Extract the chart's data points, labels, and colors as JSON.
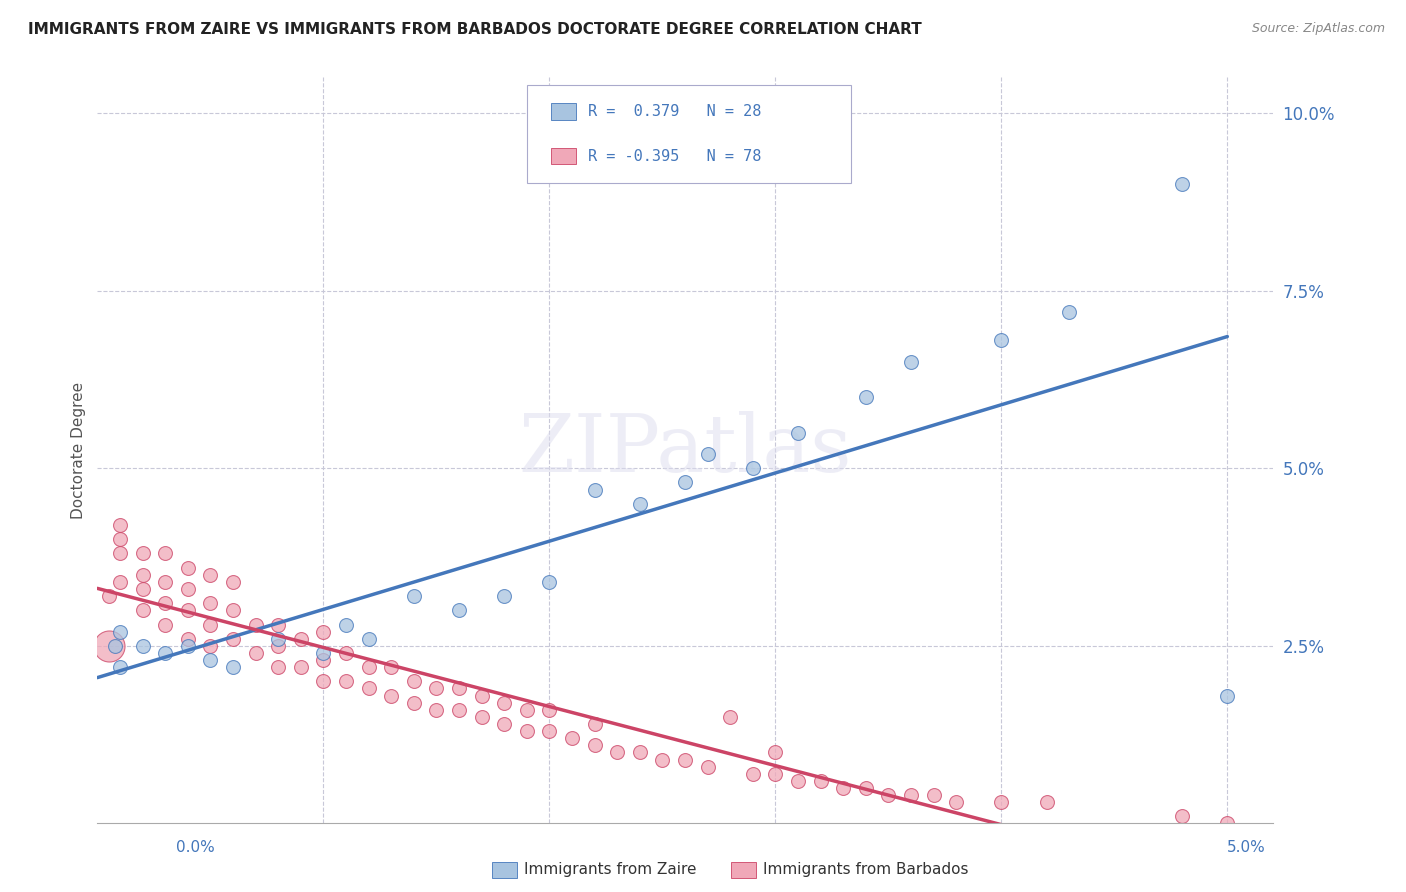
{
  "title": "IMMIGRANTS FROM ZAIRE VS IMMIGRANTS FROM BARBADOS DOCTORATE DEGREE CORRELATION CHART",
  "source": "Source: ZipAtlas.com",
  "ylabel": "Doctorate Degree",
  "ylim": [
    0.0,
    0.105
  ],
  "xlim": [
    0.0,
    0.052
  ],
  "yticks": [
    0.0,
    0.025,
    0.05,
    0.075,
    0.1
  ],
  "ytick_labels": [
    "",
    "2.5%",
    "5.0%",
    "7.5%",
    "10.0%"
  ],
  "background_color": "#ffffff",
  "grid_color": "#c8c8d8",
  "zaire_color": "#a8c4e0",
  "barbados_color": "#f0a8b8",
  "zaire_line_color": "#4477bb",
  "barbados_line_color": "#cc4466",
  "legend_text_color": "#4477bb",
  "legend_R_zaire": "R =  0.379",
  "legend_N_zaire": "N = 28",
  "legend_R_barbados": "R = -0.395",
  "legend_N_barbados": "N = 78",
  "legend_label_zaire": "Immigrants from Zaire",
  "legend_label_barbados": "Immigrants from Barbados",
  "watermark": "ZIPatlas",
  "zaire_x": [
    0.0008,
    0.001,
    0.001,
    0.002,
    0.003,
    0.004,
    0.005,
    0.006,
    0.008,
    0.01,
    0.011,
    0.012,
    0.014,
    0.016,
    0.018,
    0.02,
    0.022,
    0.024,
    0.026,
    0.027,
    0.029,
    0.031,
    0.034,
    0.036,
    0.04,
    0.043,
    0.048,
    0.05
  ],
  "zaire_y": [
    0.025,
    0.022,
    0.027,
    0.025,
    0.024,
    0.025,
    0.023,
    0.022,
    0.026,
    0.024,
    0.028,
    0.026,
    0.032,
    0.03,
    0.032,
    0.034,
    0.047,
    0.045,
    0.048,
    0.052,
    0.05,
    0.055,
    0.06,
    0.065,
    0.068,
    0.072,
    0.09,
    0.018
  ],
  "barbados_x": [
    0.0005,
    0.001,
    0.001,
    0.001,
    0.001,
    0.002,
    0.002,
    0.002,
    0.002,
    0.003,
    0.003,
    0.003,
    0.003,
    0.004,
    0.004,
    0.004,
    0.004,
    0.005,
    0.005,
    0.005,
    0.005,
    0.006,
    0.006,
    0.006,
    0.007,
    0.007,
    0.008,
    0.008,
    0.008,
    0.009,
    0.009,
    0.01,
    0.01,
    0.01,
    0.011,
    0.011,
    0.012,
    0.012,
    0.013,
    0.013,
    0.014,
    0.014,
    0.015,
    0.015,
    0.016,
    0.016,
    0.017,
    0.017,
    0.018,
    0.018,
    0.019,
    0.019,
    0.02,
    0.02,
    0.021,
    0.022,
    0.022,
    0.023,
    0.024,
    0.025,
    0.026,
    0.027,
    0.028,
    0.029,
    0.03,
    0.03,
    0.031,
    0.032,
    0.033,
    0.034,
    0.035,
    0.036,
    0.037,
    0.038,
    0.04,
    0.042,
    0.048,
    0.05
  ],
  "barbados_y": [
    0.032,
    0.038,
    0.04,
    0.034,
    0.042,
    0.03,
    0.033,
    0.035,
    0.038,
    0.028,
    0.031,
    0.034,
    0.038,
    0.026,
    0.03,
    0.033,
    0.036,
    0.025,
    0.028,
    0.031,
    0.035,
    0.026,
    0.03,
    0.034,
    0.024,
    0.028,
    0.022,
    0.025,
    0.028,
    0.022,
    0.026,
    0.02,
    0.023,
    0.027,
    0.02,
    0.024,
    0.019,
    0.022,
    0.018,
    0.022,
    0.017,
    0.02,
    0.016,
    0.019,
    0.016,
    0.019,
    0.015,
    0.018,
    0.014,
    0.017,
    0.013,
    0.016,
    0.013,
    0.016,
    0.012,
    0.011,
    0.014,
    0.01,
    0.01,
    0.009,
    0.009,
    0.008,
    0.015,
    0.007,
    0.007,
    0.01,
    0.006,
    0.006,
    0.005,
    0.005,
    0.004,
    0.004,
    0.004,
    0.003,
    0.003,
    0.003,
    0.001,
    0.0
  ],
  "barbados_large_x": [
    0.0005
  ],
  "barbados_large_y": [
    0.025
  ]
}
